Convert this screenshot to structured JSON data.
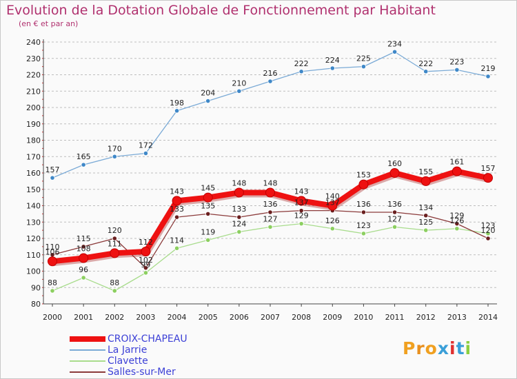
{
  "chart_data": {
    "type": "line",
    "title": "Evolution de la Dotation Globale de Fonctionnement par Habitant",
    "subtitle": "(en € et par an)",
    "xlabel": "",
    "ylabel": "",
    "categories": [
      "2000",
      "2001",
      "2002",
      "2003",
      "2004",
      "2005",
      "2006",
      "2007",
      "2008",
      "2009",
      "2010",
      "2011",
      "2012",
      "2013",
      "2014"
    ],
    "ylim": [
      80,
      240
    ],
    "yticks": [
      80,
      90,
      100,
      110,
      120,
      130,
      140,
      150,
      160,
      170,
      180,
      190,
      200,
      210,
      220,
      230,
      240
    ],
    "grid": "dashed horizontal",
    "legend_position": "bottom-left",
    "series": [
      {
        "name": "La Jarrie",
        "color": "#7aaad6",
        "marker_color": "#3f88c8",
        "values": [
          157,
          165,
          170,
          172,
          198,
          204,
          210,
          216,
          222,
          224,
          225,
          234,
          222,
          223,
          219
        ],
        "labels": [
          "157",
          "165",
          "170",
          "172",
          "198",
          "204",
          "210",
          "216",
          "222",
          "224",
          "225",
          "234",
          "222",
          "223",
          "219"
        ]
      },
      {
        "name": "Clavette",
        "color": "#a8dc8c",
        "marker_color": "#8ccf60",
        "values": [
          88,
          96,
          88,
          99,
          114,
          119,
          124,
          127,
          129,
          126,
          123,
          127,
          125,
          126,
          123
        ],
        "labels": [
          "88",
          "96",
          "88",
          "99",
          "114",
          "119",
          "124",
          "127",
          "129",
          "126",
          "123",
          "127",
          "125",
          "126",
          "123"
        ]
      },
      {
        "name": "Salles-sur-Mer",
        "color": "#8b3a3a",
        "marker_color": "#6a1f1f",
        "values": [
          110,
          115,
          120,
          102,
          133,
          135,
          133,
          136,
          137,
          137,
          136,
          136,
          134,
          129,
          120
        ],
        "labels": [
          "110",
          "115",
          "120",
          "102",
          "133",
          "135",
          "133",
          "136",
          "137",
          "137",
          "136",
          "136",
          "134",
          "129",
          "120"
        ]
      },
      {
        "name": "CROIX-CHAPEAU",
        "color": "#ee1111",
        "marker_color": "#ee1111",
        "values": [
          106,
          108,
          111,
          112,
          143,
          145,
          148,
          148,
          143,
          140,
          153,
          160,
          155,
          161,
          157
        ],
        "labels": [
          "106",
          "108",
          "111",
          "112",
          "143",
          "145",
          "148",
          "148",
          "143",
          "140",
          "153",
          "160",
          "155",
          "161",
          "157"
        ]
      }
    ]
  },
  "legend": {
    "items": [
      {
        "label": "CROIX-CHAPEAU",
        "color": "#ee1111",
        "thick": true
      },
      {
        "label": "La Jarrie",
        "color": "#7aaad6",
        "thick": false
      },
      {
        "label": "Clavette",
        "color": "#a8dc8c",
        "thick": false
      },
      {
        "label": "Salles-sur-Mer",
        "color": "#8b3a3a",
        "thick": false
      }
    ]
  },
  "logo": {
    "text": "Proxiti"
  }
}
